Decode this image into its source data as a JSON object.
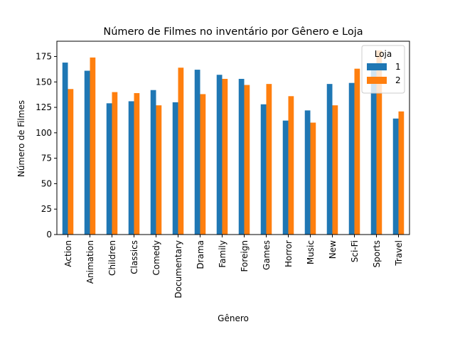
{
  "chart_data": {
    "type": "bar",
    "title": "Número de Filmes no inventário por Gênero e Loja",
    "xlabel": "Gênero",
    "ylabel": "Número de Filmes",
    "categories": [
      "Action",
      "Animation",
      "Children",
      "Classics",
      "Comedy",
      "Documentary",
      "Drama",
      "Family",
      "Foreign",
      "Games",
      "Horror",
      "Music",
      "New",
      "Sci-Fi",
      "Sports",
      "Travel"
    ],
    "series": [
      {
        "name": "1",
        "color": "#1f77b4",
        "values": [
          169,
          161,
          129,
          131,
          142,
          130,
          162,
          157,
          153,
          128,
          112,
          122,
          148,
          149,
          163,
          114
        ]
      },
      {
        "name": "2",
        "color": "#ff7f0e",
        "values": [
          143,
          174,
          140,
          139,
          127,
          164,
          138,
          153,
          147,
          148,
          136,
          110,
          127,
          163,
          181,
          121
        ]
      }
    ],
    "ylim": [
      0,
      190
    ],
    "yticks": [
      0,
      25,
      50,
      75,
      100,
      125,
      150,
      175
    ],
    "legend": {
      "title": "Loja",
      "position": "top-right"
    },
    "grid": false
  }
}
